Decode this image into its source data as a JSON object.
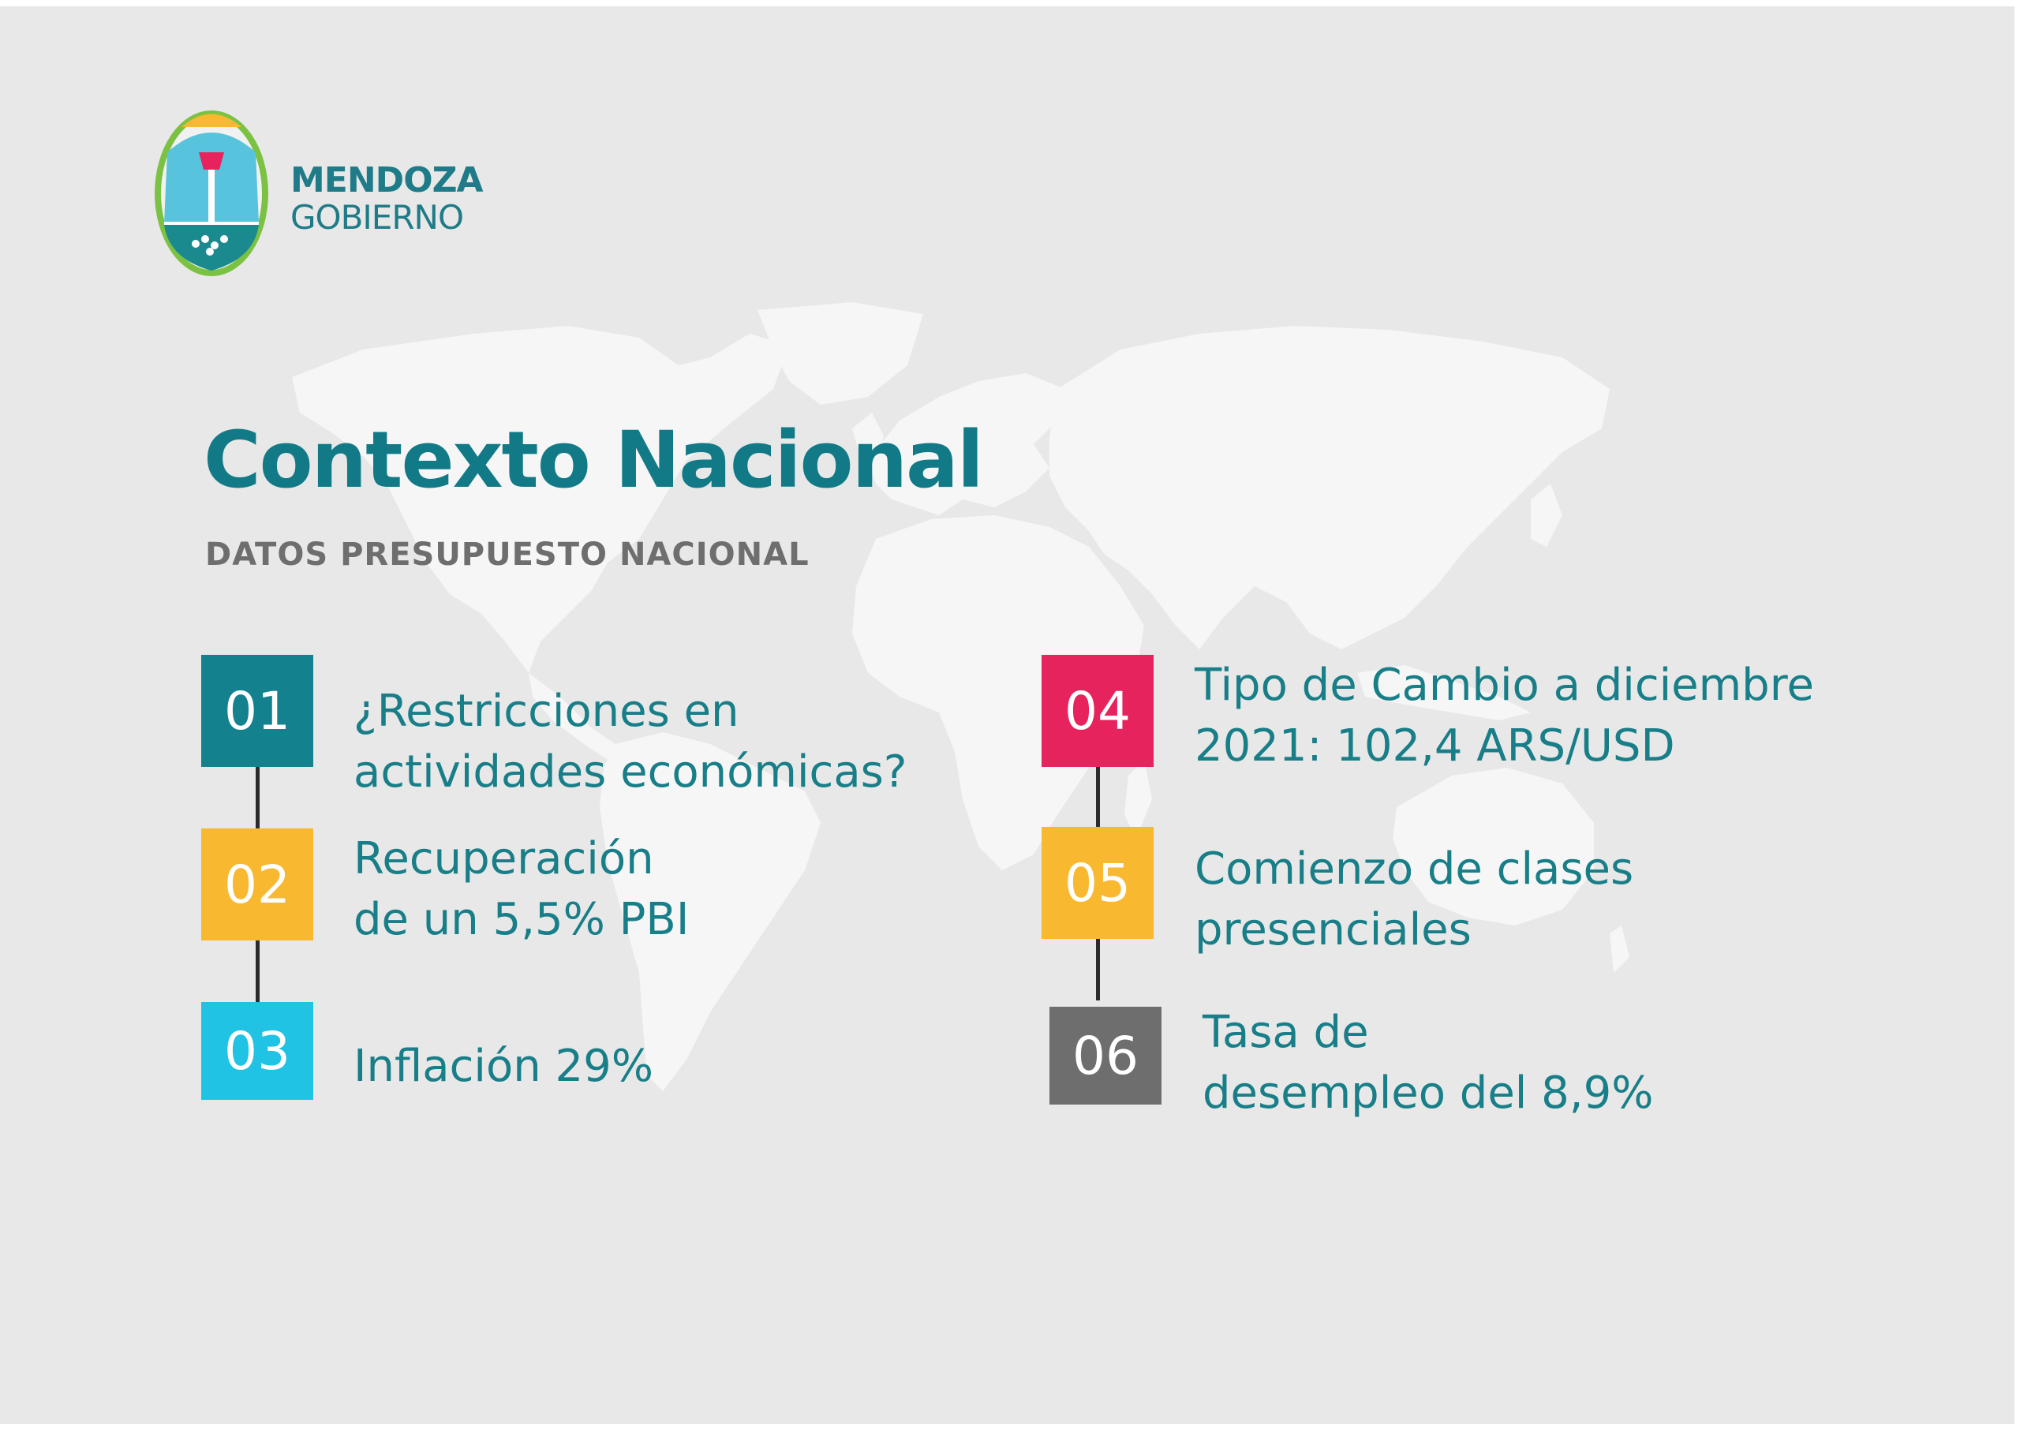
{
  "logo": {
    "line1": "MENDOZA",
    "line2": "GOBIERNO"
  },
  "title": "Contexto Nacional",
  "subtitle": "DATOS PRESUPUESTO NACIONAL",
  "colors": {
    "background": "#e8e8e8",
    "title": "#117a86",
    "text": "#187e88",
    "box_01": "#13818e",
    "box_02": "#f8b830",
    "box_03": "#21c3e4",
    "box_04": "#e6235c",
    "box_05": "#f8b830",
    "box_06": "#6e6e6e"
  },
  "items": [
    {
      "number": "01",
      "lines": [
        "¿Restricciones en",
        "actividades económicas?"
      ]
    },
    {
      "number": "02",
      "lines": [
        "Recuperación",
        "de un 5,5% PBI"
      ]
    },
    {
      "number": "03",
      "lines": [
        "Inflación 29%"
      ]
    },
    {
      "number": "04",
      "lines": [
        "Tipo de Cambio a diciembre",
        "2021: 102,4 ARS/USD"
      ]
    },
    {
      "number": "05",
      "lines": [
        "Comienzo de clases",
        "presenciales"
      ]
    },
    {
      "number": "06",
      "lines": [
        "Tasa de",
        "desempleo del 8,9%"
      ]
    }
  ]
}
